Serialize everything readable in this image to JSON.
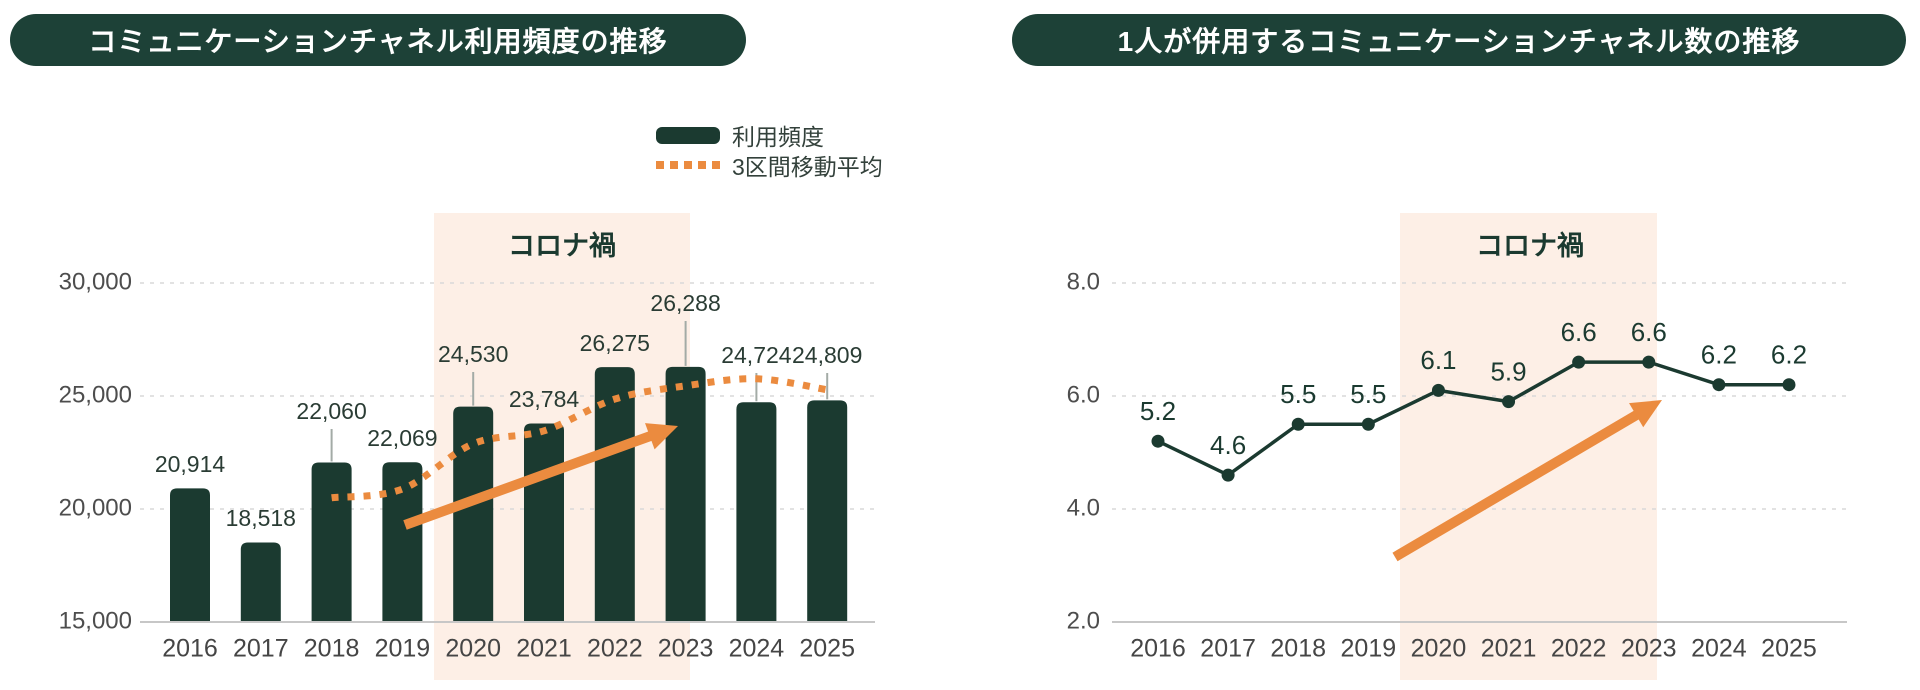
{
  "colors": {
    "dark_green": "#1b3a30",
    "pill_green": "#1d4137",
    "orange": "#eb8b3f",
    "covid_band": "#fdefe6",
    "gridline": "#d9d9d9",
    "axis_line": "#c7c7c7",
    "tick_text": "#4d4d4d",
    "leader_line": "#a3aba6"
  },
  "legend": [
    {
      "label": "利用頻度",
      "marker": "bar"
    },
    {
      "label": "3区間移動平均",
      "marker": "dotted-line"
    }
  ],
  "chart_data": [
    {
      "type": "bar",
      "title": "コミュニケーションチャネル利用頻度の推移",
      "categories": [
        "2016",
        "2017",
        "2018",
        "2019",
        "2020",
        "2021",
        "2022",
        "2023",
        "2024",
        "2025"
      ],
      "values": [
        20914,
        18518,
        22060,
        22069,
        24530,
        23784,
        26275,
        26288,
        24724,
        24809
      ],
      "value_labels": [
        "20,914",
        "18,518",
        "22,060",
        "22,069",
        "24,530",
        "23,784",
        "26,275",
        "26,288",
        "24,724",
        "24,809"
      ],
      "ylim": [
        15000,
        30000
      ],
      "yticks": [
        {
          "value": 15000,
          "label": "15,000"
        },
        {
          "value": 20000,
          "label": "20,000"
        },
        {
          "value": 25000,
          "label": "25,000"
        },
        {
          "value": 30000,
          "label": "30,000"
        }
      ],
      "moving_average": {
        "name": "3区間移動平均",
        "period": 3,
        "categories": [
          "2018",
          "2019",
          "2020",
          "2021",
          "2022",
          "2023",
          "2024",
          "2025"
        ],
        "values": [
          20497,
          20882,
          22886,
          23461,
          24863,
          25449,
          25762,
          25274
        ]
      },
      "annotation": {
        "label": "コロナ禍",
        "span": [
          "2020",
          "2023"
        ]
      },
      "trend_arrow": "up",
      "grid": "horizontal-dashed",
      "legend_position": "top-right"
    },
    {
      "type": "line",
      "title": "1人が併用するコミュニケーションチャネル数の推移",
      "categories": [
        "2016",
        "2017",
        "2018",
        "2019",
        "2020",
        "2021",
        "2022",
        "2023",
        "2024",
        "2025"
      ],
      "values": [
        5.2,
        4.6,
        5.5,
        5.5,
        6.1,
        5.9,
        6.6,
        6.6,
        6.2,
        6.2
      ],
      "value_labels": [
        "5.2",
        "4.6",
        "5.5",
        "5.5",
        "6.1",
        "5.9",
        "6.6",
        "6.6",
        "6.2",
        "6.2"
      ],
      "ylim": [
        2.0,
        8.0
      ],
      "yticks": [
        {
          "value": 2.0,
          "label": "2.0"
        },
        {
          "value": 4.0,
          "label": "4.0"
        },
        {
          "value": 6.0,
          "label": "6.0"
        },
        {
          "value": 8.0,
          "label": "8.0"
        }
      ],
      "annotation": {
        "label": "コロナ禍",
        "span": [
          "2020",
          "2023"
        ]
      },
      "trend_arrow": "up",
      "grid": "horizontal-dashed",
      "legend_position": "none"
    }
  ]
}
